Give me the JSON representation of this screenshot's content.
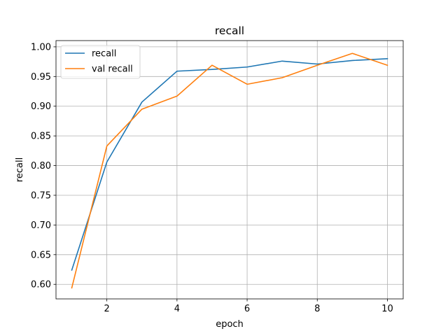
{
  "chart_data": {
    "type": "line",
    "title": "recall",
    "xlabel": "epoch",
    "ylabel": "recall",
    "xlim": [
      0.55,
      10.45
    ],
    "ylim": [
      0.5755,
      1.0105
    ],
    "x_ticks": [
      2,
      4,
      6,
      8,
      10
    ],
    "x_tick_labels": [
      "2",
      "4",
      "6",
      "8",
      "10"
    ],
    "y_ticks": [
      0.6,
      0.65,
      0.7,
      0.75,
      0.8,
      0.85,
      0.9,
      0.95,
      1.0
    ],
    "y_tick_labels": [
      "0.60",
      "0.65",
      "0.70",
      "0.75",
      "0.80",
      "0.85",
      "0.90",
      "0.95",
      "1.00"
    ],
    "grid": true,
    "legend_position": "top-left",
    "x": [
      1,
      2,
      3,
      4,
      5,
      6,
      7,
      8,
      9,
      10
    ],
    "series": [
      {
        "name": "recall",
        "color": "#1f77b4",
        "values": [
          0.624,
          0.806,
          0.907,
          0.959,
          0.962,
          0.966,
          0.976,
          0.971,
          0.977,
          0.98
        ]
      },
      {
        "name": "val recall",
        "color": "#ff7f0e",
        "values": [
          0.594,
          0.833,
          0.895,
          0.917,
          0.969,
          0.937,
          0.948,
          0.969,
          0.989,
          0.969
        ]
      }
    ]
  }
}
